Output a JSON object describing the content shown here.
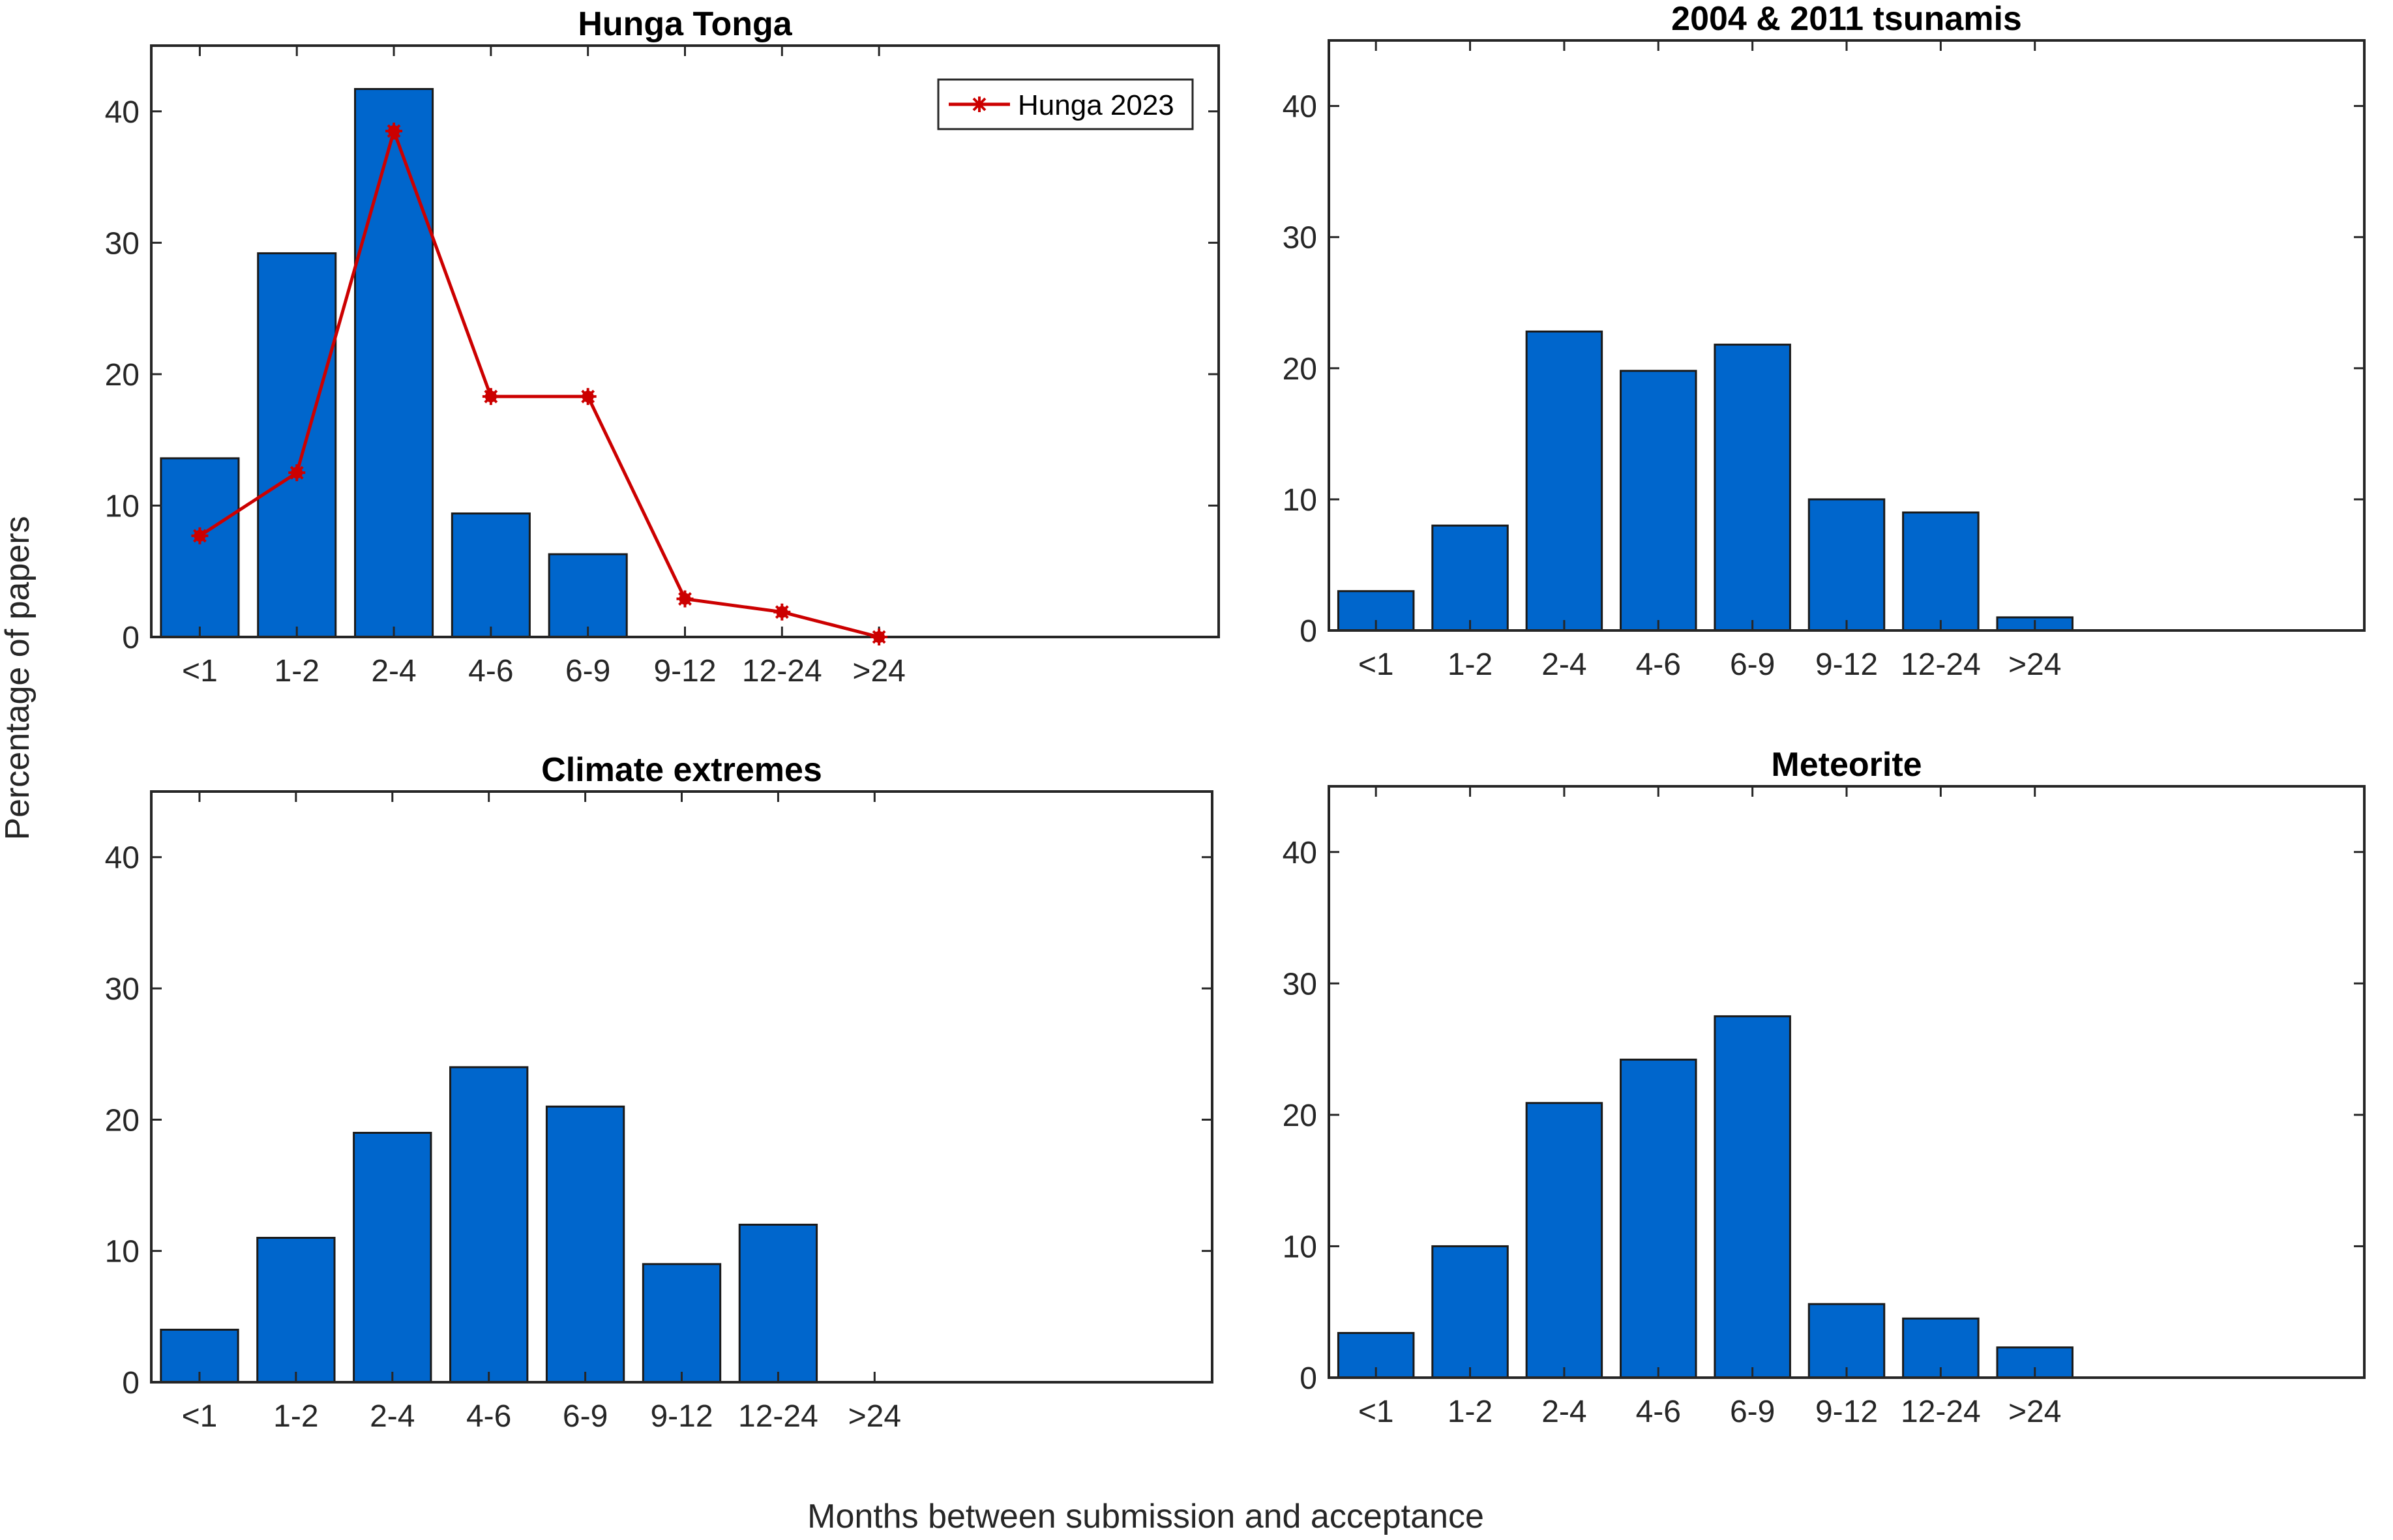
{
  "figure": {
    "ylabel": "Percentage of papers",
    "xlabel": "Months between submission and acceptance",
    "bar_color": "#0066CC",
    "line_color": "#CC0000"
  },
  "chart_data": [
    {
      "type": "bar",
      "title": "Hunga Tonga",
      "categories": [
        "<1",
        "1-2",
        "2-4",
        "4-6",
        "6-9",
        "9-12",
        "12-24",
        ">24"
      ],
      "values": [
        13.6,
        29.2,
        41.7,
        9.4,
        6.3,
        0,
        0,
        0
      ],
      "ylim": [
        0,
        45
      ],
      "yticks": [
        0,
        10,
        20,
        30,
        40
      ],
      "overlay": {
        "type": "line",
        "name": "Hunga 2023",
        "values": [
          7.7,
          12.5,
          38.5,
          18.3,
          18.3,
          2.9,
          1.9,
          0
        ]
      },
      "legend": "top-right"
    },
    {
      "type": "bar",
      "title": "2004 & 2011 tsunamis",
      "categories": [
        "<1",
        "1-2",
        "2-4",
        "4-6",
        "6-9",
        "9-12",
        "12-24",
        ">24"
      ],
      "values": [
        3,
        8,
        22.8,
        19.8,
        21.8,
        10,
        9,
        1
      ],
      "ylim": [
        0,
        45
      ],
      "yticks": [
        0,
        10,
        20,
        30,
        40
      ]
    },
    {
      "type": "bar",
      "title": "Climate extremes",
      "categories": [
        "<1",
        "1-2",
        "2-4",
        "4-6",
        "6-9",
        "9-12",
        "12-24",
        ">24"
      ],
      "values": [
        4,
        11,
        19,
        24,
        21,
        9,
        12,
        0
      ],
      "ylim": [
        0,
        45
      ],
      "yticks": [
        0,
        10,
        20,
        30,
        40
      ]
    },
    {
      "type": "bar",
      "title": "Meteorite",
      "categories": [
        "<1",
        "1-2",
        "2-4",
        "4-6",
        "6-9",
        "9-12",
        "12-24",
        ">24"
      ],
      "values": [
        3.4,
        10,
        20.9,
        24.2,
        27.5,
        5.6,
        4.5,
        2.3
      ],
      "ylim": [
        0,
        45
      ],
      "yticks": [
        0,
        10,
        20,
        30,
        40
      ]
    }
  ]
}
